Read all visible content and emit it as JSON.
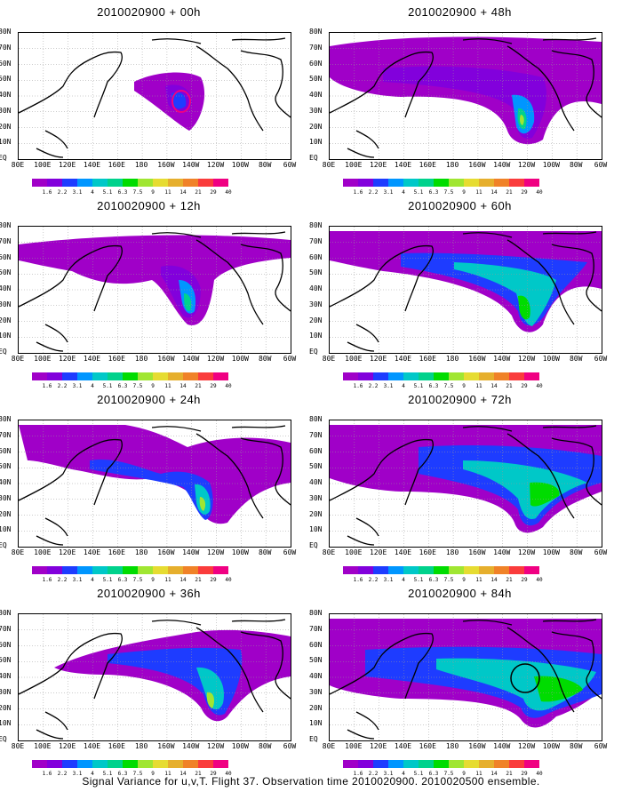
{
  "panels": [
    {
      "title": "2010020900 + 00h"
    },
    {
      "title": "2010020900 + 48h"
    },
    {
      "title": "2010020900 + 12h"
    },
    {
      "title": "2010020900 + 60h"
    },
    {
      "title": "2010020900 + 24h"
    },
    {
      "title": "2010020900 + 72h"
    },
    {
      "title": "2010020900 + 36h"
    },
    {
      "title": "2010020900 + 84h"
    }
  ],
  "lat_labels": [
    "80N",
    "70N",
    "60N",
    "50N",
    "40N",
    "30N",
    "20N",
    "10N",
    "EQ"
  ],
  "lon_labels": [
    "80E",
    "100E",
    "120E",
    "140E",
    "160E",
    "180",
    "160W",
    "140W",
    "120W",
    "100W",
    "80W",
    "60W"
  ],
  "colorbar": {
    "labels": [
      "1.6",
      "2.2",
      "3.1",
      "4",
      "5.1",
      "6.3",
      "7.5",
      "9",
      "11",
      "14",
      "21",
      "29",
      "40"
    ],
    "colors": [
      "#a000c8",
      "#8200dc",
      "#1e3cff",
      "#0096ff",
      "#00c8c8",
      "#00d28c",
      "#00dc00",
      "#a0e632",
      "#e6dc32",
      "#e6af2d",
      "#f08228",
      "#fa3c3c",
      "#f00082"
    ]
  },
  "caption": "Signal Variance for u,v,T. Flight 37. Observation time 2010020900. 2010020500 ensemble."
}
